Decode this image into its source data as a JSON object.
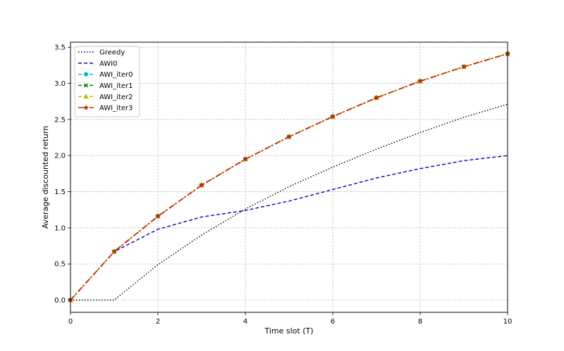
{
  "chart_data": {
    "type": "line",
    "title": "",
    "xlabel": "Time slot (T)",
    "ylabel": "Average discounted return",
    "xlim": [
      0,
      10
    ],
    "ylim": [
      -0.17,
      3.57
    ],
    "xticks": [
      0,
      2,
      4,
      6,
      8,
      10
    ],
    "yticks": [
      0.0,
      0.5,
      1.0,
      1.5,
      2.0,
      2.5,
      3.0,
      3.5
    ],
    "grid": true,
    "legend_position": "upper-left",
    "x": [
      0,
      1,
      2,
      3,
      4,
      5,
      6,
      7,
      8,
      9,
      10
    ],
    "series": [
      {
        "name": "Greedy",
        "color": "#000000",
        "dash": "dotted",
        "marker": "none",
        "values": [
          0.0,
          0.0,
          0.49,
          0.9,
          1.26,
          1.57,
          1.84,
          2.09,
          2.32,
          2.53,
          2.71
        ]
      },
      {
        "name": "AWI0",
        "color": "#0000cc",
        "dash": "dashed",
        "marker": "none",
        "values": [
          0.0,
          0.67,
          0.98,
          1.15,
          1.24,
          1.37,
          1.53,
          1.69,
          1.82,
          1.93,
          2.0
        ]
      },
      {
        "name": "AWI_iter0",
        "color": "#00bfbf",
        "dash": "dashed",
        "marker": "circle",
        "values": [
          0.0,
          0.67,
          1.16,
          1.59,
          1.95,
          2.26,
          2.54,
          2.8,
          3.03,
          3.23,
          3.41
        ]
      },
      {
        "name": "AWI_iter1",
        "color": "#008000",
        "dash": "dashed",
        "marker": "x",
        "values": [
          0.0,
          0.67,
          1.16,
          1.59,
          1.95,
          2.26,
          2.54,
          2.8,
          3.03,
          3.23,
          3.41
        ]
      },
      {
        "name": "AWI_iter2",
        "color": "#bfbf00",
        "dash": "dashed",
        "marker": "triangle",
        "values": [
          0.0,
          0.67,
          1.16,
          1.59,
          1.95,
          2.26,
          2.54,
          2.8,
          3.03,
          3.23,
          3.41
        ]
      },
      {
        "name": "AWI_iter3",
        "color": "#cc2200",
        "dash": "dashdot",
        "marker": "star",
        "values": [
          0.0,
          0.67,
          1.16,
          1.59,
          1.95,
          2.26,
          2.54,
          2.8,
          3.03,
          3.23,
          3.41
        ]
      }
    ]
  }
}
